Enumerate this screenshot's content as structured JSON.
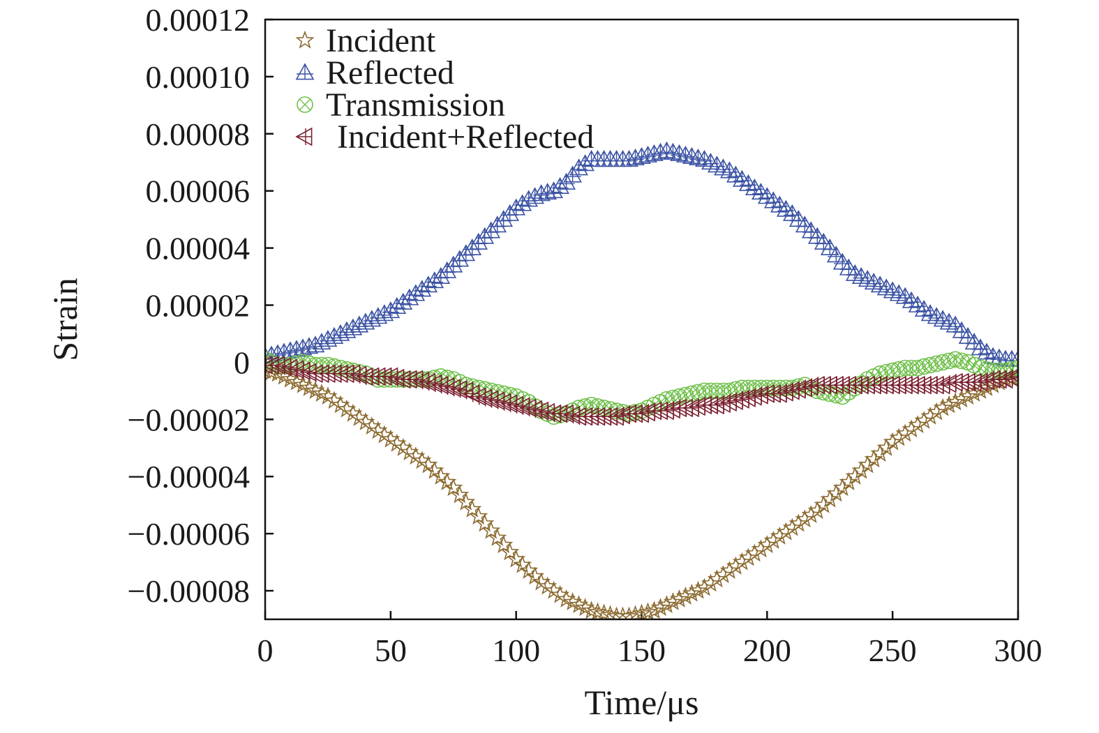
{
  "chart_data": {
    "type": "scatter",
    "xlabel": "Time/μs",
    "ylabel": "Strain",
    "xlim": [
      0,
      300
    ],
    "ylim": [
      -9e-05,
      0.00012
    ],
    "x_ticks": [
      0,
      50,
      100,
      150,
      200,
      250,
      300
    ],
    "x_tick_labels": [
      "0",
      "50",
      "100",
      "150",
      "200",
      "250",
      "300"
    ],
    "y_ticks": [
      0.00012,
      0.0001,
      8e-05,
      6e-05,
      4e-05,
      2e-05,
      0,
      -2e-05,
      -4e-05,
      -6e-05,
      -8e-05
    ],
    "y_tick_labels": [
      "0.00012",
      "0.00010",
      "0.00008",
      "0.00006",
      "0.00004",
      "0.00002",
      "0",
      "−0.00002",
      "−0.00004",
      "−0.00006",
      "−0.00008"
    ],
    "grid": false,
    "legend_position": "top-left",
    "x": [
      0,
      5,
      10,
      15,
      20,
      25,
      30,
      35,
      40,
      45,
      50,
      55,
      60,
      65,
      70,
      75,
      80,
      85,
      90,
      95,
      100,
      105,
      110,
      115,
      120,
      125,
      130,
      135,
      140,
      145,
      150,
      155,
      160,
      165,
      170,
      175,
      180,
      185,
      190,
      195,
      200,
      205,
      210,
      215,
      220,
      225,
      230,
      235,
      240,
      245,
      250,
      255,
      260,
      265,
      270,
      275,
      280,
      285,
      290,
      295,
      300
    ],
    "series": [
      {
        "name": "Incident",
        "marker": "star",
        "color": "#8b6a2f",
        "values": [
          -3e-06,
          -4e-06,
          -6e-06,
          -8e-06,
          -1e-05,
          -1.2e-05,
          -1.5e-05,
          -1.8e-05,
          -2.1e-05,
          -2.4e-05,
          -2.7e-05,
          -3e-05,
          -3.3e-05,
          -3.6e-05,
          -4e-05,
          -4.4e-05,
          -4.9e-05,
          -5.4e-05,
          -5.9e-05,
          -6.4e-05,
          -6.9e-05,
          -7.3e-05,
          -7.7e-05,
          -8e-05,
          -8.3e-05,
          -8.5e-05,
          -8.7e-05,
          -8.8e-05,
          -8.9e-05,
          -8.9e-05,
          -8.8e-05,
          -8.7e-05,
          -8.5e-05,
          -8.3e-05,
          -8.1e-05,
          -7.9e-05,
          -7.6e-05,
          -7.3e-05,
          -7e-05,
          -6.7e-05,
          -6.4e-05,
          -6.1e-05,
          -5.8e-05,
          -5.5e-05,
          -5.2e-05,
          -4.8e-05,
          -4.4e-05,
          -4e-05,
          -3.6e-05,
          -3.2e-05,
          -2.8e-05,
          -2.5e-05,
          -2.2e-05,
          -1.9e-05,
          -1.6e-05,
          -1.4e-05,
          -1.2e-05,
          -1e-05,
          -8e-06,
          -6e-06,
          -5e-06
        ]
      },
      {
        "name": "Reflected",
        "marker": "triangle-up",
        "color": "#3a52a3",
        "values": [
          2e-06,
          3e-06,
          4e-06,
          5e-06,
          6e-06,
          8e-06,
          1e-05,
          1.2e-05,
          1.4e-05,
          1.6e-05,
          1.8e-05,
          2.1e-05,
          2.4e-05,
          2.7e-05,
          3e-05,
          3.4e-05,
          3.8e-05,
          4.2e-05,
          4.6e-05,
          5e-05,
          5.4e-05,
          5.7e-05,
          5.9e-05,
          6e-05,
          6.3e-05,
          6.8e-05,
          7.1e-05,
          7.1e-05,
          7.1e-05,
          7.1e-05,
          7.2e-05,
          7.3e-05,
          7.4e-05,
          7.3e-05,
          7.2e-05,
          7.1e-05,
          6.9e-05,
          6.7e-05,
          6.4e-05,
          6.1e-05,
          5.8e-05,
          5.5e-05,
          5.2e-05,
          4.8e-05,
          4.4e-05,
          4e-05,
          3.5e-05,
          3.1e-05,
          2.9e-05,
          2.7e-05,
          2.5e-05,
          2.3e-05,
          2e-05,
          1.7e-05,
          1.5e-05,
          1.3e-05,
          9e-06,
          5e-06,
          2e-06,
          1e-06,
          1e-06
        ]
      },
      {
        "name": "Transmission",
        "marker": "circle-x",
        "color": "#6fc04a",
        "values": [
          1e-06,
          -1e-06,
          -1e-06,
          0,
          -1e-06,
          -1e-06,
          -2e-06,
          -3e-06,
          -4e-06,
          -6e-06,
          -6e-06,
          -6e-06,
          -6e-06,
          -6e-06,
          -5e-06,
          -6e-06,
          -8e-06,
          -9e-06,
          -1e-05,
          -1.1e-05,
          -1.2e-05,
          -1.4e-05,
          -1.7e-05,
          -1.9e-05,
          -1.8e-05,
          -1.6e-05,
          -1.5e-05,
          -1.6e-05,
          -1.7e-05,
          -1.8e-05,
          -1.7e-05,
          -1.5e-05,
          -1.3e-05,
          -1.2e-05,
          -1.1e-05,
          -1e-05,
          -1e-05,
          -1e-05,
          -9e-06,
          -9e-06,
          -9e-06,
          -9e-06,
          -9e-06,
          -8e-06,
          -1e-05,
          -1.1e-05,
          -1.2e-05,
          -9e-06,
          -6e-06,
          -4e-06,
          -3e-06,
          -2e-06,
          -2e-06,
          -1e-06,
          0,
          1e-06,
          0,
          -2e-06,
          -3e-06,
          -3e-06,
          -2e-06
        ]
      },
      {
        "name": "Incident+Reflected",
        "marker": "triangle-left",
        "color": "#7a2030",
        "values": [
          -1e-06,
          -1e-06,
          -2e-06,
          -3e-06,
          -4e-06,
          -4e-06,
          -4e-06,
          -4e-06,
          -5e-06,
          -5e-06,
          -5e-06,
          -6e-06,
          -6e-06,
          -7e-06,
          -8e-06,
          -9e-06,
          -1e-05,
          -1.2e-05,
          -1.3e-05,
          -1.4e-05,
          -1.5e-05,
          -1.6e-05,
          -1.7e-05,
          -1.8e-05,
          -1.8e-05,
          -1.9e-05,
          -1.9e-05,
          -1.9e-05,
          -1.9e-05,
          -1.8e-05,
          -1.8e-05,
          -1.7e-05,
          -1.7e-05,
          -1.6e-05,
          -1.6e-05,
          -1.5e-05,
          -1.5e-05,
          -1.4e-05,
          -1.3e-05,
          -1.2e-05,
          -1.1e-05,
          -1.1e-05,
          -1e-05,
          -9e-06,
          -8e-06,
          -8e-06,
          -8e-06,
          -8e-06,
          -8e-06,
          -8e-06,
          -8e-06,
          -8e-06,
          -8e-06,
          -8e-06,
          -8e-06,
          -7e-06,
          -7e-06,
          -7e-06,
          -6e-06,
          -6e-06,
          -5e-06
        ]
      }
    ]
  }
}
